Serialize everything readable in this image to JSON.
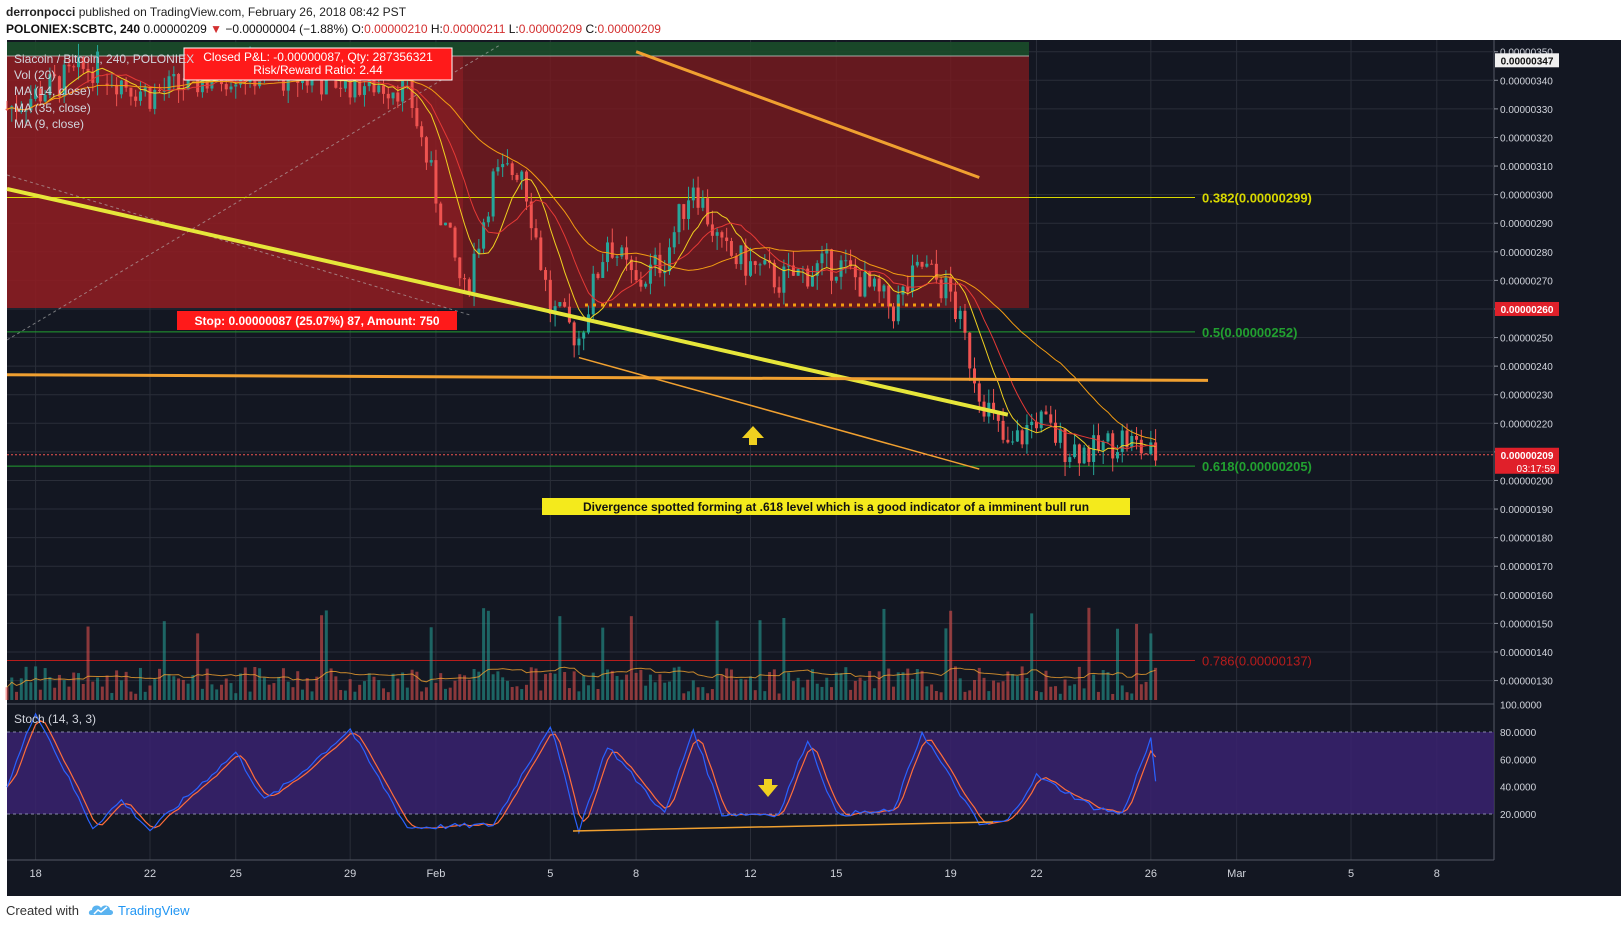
{
  "header": {
    "author": "derronpocci",
    "published_text": "published on TradingView.com, February 26, 2018 08:42 PST",
    "symbol": "POLONIEX:SCBTC, 240",
    "last": "0.00000209",
    "change": "−0.00000004 (−1.88%)",
    "o_label": "O:",
    "o": "0.00000210",
    "h_label": "H:",
    "h": "0.00000211",
    "l_label": "L:",
    "l": "0.00000209",
    "c_label": "C:",
    "c": "0.00000209"
  },
  "legend": {
    "title": "Siacoin / Bitcoin, 240, POLONIEX",
    "vol": "Vol (20)",
    "ma14": "MA (14, close)",
    "ma35": "MA (35, close)",
    "ma9": "MA (9, close)",
    "stoch": "Stoch (14, 3, 3)"
  },
  "trade": {
    "close_line1": "Closed P&L: -0.00000087, Qty: 287356321",
    "close_line2": "Risk/Reward Ratio: 2.44",
    "stop": "Stop: 0.00000087 (25.07%) 87, Amount: 750"
  },
  "fib": {
    "f0382": "0.382(0.00000299)",
    "f05": "0.5(0.00000252)",
    "f0618": "0.618(0.00000205)",
    "f0786": "0.786(0.00000137)"
  },
  "annotation": "Divergence spotted forming at .618 level which is a good indicator of a imminent bull run",
  "price_axis": {
    "ticks": [
      "0.00000350",
      "0.00000340",
      "0.00000330",
      "0.00000320",
      "0.00000310",
      "0.00000300",
      "0.00000290",
      "0.00000280",
      "0.00000270",
      "0.00000260",
      "0.00000250",
      "0.00000240",
      "0.00000230",
      "0.00000220",
      "0.00000210",
      "0.00000200",
      "0.00000190",
      "0.00000180",
      "0.00000170",
      "0.00000160",
      "0.00000150",
      "0.00000140",
      "0.00000130"
    ],
    "tag_top": "0.00000347",
    "tag_stop": "0.00000260",
    "tag_last": "0.00000209",
    "countdown": "03:17:59"
  },
  "stoch_axis": {
    "ticks": [
      "100.0000",
      "80.0000",
      "60.0000",
      "40.0000",
      "20.0000"
    ]
  },
  "time_axis": {
    "labels": [
      "18",
      "22",
      "25",
      "29",
      "Feb",
      "5",
      "8",
      "12",
      "15",
      "19",
      "22",
      "26",
      "Mar",
      "5",
      "8"
    ]
  },
  "footer": {
    "created": "Created with",
    "brand": "TradingView"
  },
  "colors": {
    "background": "#131722",
    "grid": "#2a2e39",
    "up": "#26a69a",
    "down": "#ef5350",
    "stop_zone": "#7a1a1f",
    "profit_zone": "#1b4d2a",
    "trendline_yellow": "#e6e63a",
    "trendline_orange": "#f0a030",
    "fib_yellow": "#d8d800",
    "fib_green": "#22a030",
    "fib_red": "#b71c1c",
    "stoch_band": "#3a2270",
    "stoch_k": "#2962ff",
    "stoch_d": "#ff6d3a"
  },
  "chart_data": {
    "type": "candlestick",
    "timeframe": "240",
    "x_range": [
      "2018-01-17",
      "2018-03-10"
    ],
    "y_range": [
      1.26e-06,
      3.52e-06
    ],
    "price_path": [
      {
        "date": "2018-01-17",
        "price": 3.3e-06
      },
      {
        "date": "2018-01-20",
        "price": 3.45e-06
      },
      {
        "date": "2018-01-22",
        "price": 3.35e-06
      },
      {
        "date": "2018-01-25",
        "price": 3.43e-06
      },
      {
        "date": "2018-01-28",
        "price": 3.4e-06
      },
      {
        "date": "2018-01-31",
        "price": 3.38e-06
      },
      {
        "date": "2018-02-01",
        "price": 3e-06
      },
      {
        "date": "2018-02-02",
        "price": 2.65e-06
      },
      {
        "date": "2018-02-03",
        "price": 3.05e-06
      },
      {
        "date": "2018-02-04",
        "price": 3.1e-06
      },
      {
        "date": "2018-02-05",
        "price": 2.6e-06
      },
      {
        "date": "2018-02-06",
        "price": 2.5e-06
      },
      {
        "date": "2018-02-07",
        "price": 2.85e-06
      },
      {
        "date": "2018-02-08",
        "price": 2.68e-06
      },
      {
        "date": "2018-02-09",
        "price": 2.78e-06
      },
      {
        "date": "2018-02-10",
        "price": 3.05e-06
      },
      {
        "date": "2018-02-11",
        "price": 2.8e-06
      },
      {
        "date": "2018-02-13",
        "price": 2.7e-06
      },
      {
        "date": "2018-02-15",
        "price": 2.76e-06
      },
      {
        "date": "2018-02-17",
        "price": 2.6e-06
      },
      {
        "date": "2018-02-18",
        "price": 2.75e-06
      },
      {
        "date": "2018-02-19",
        "price": 2.65e-06
      },
      {
        "date": "2018-02-20",
        "price": 2.32e-06
      },
      {
        "date": "2018-02-21",
        "price": 2.1e-06
      },
      {
        "date": "2018-02-22",
        "price": 2.22e-06
      },
      {
        "date": "2018-02-23",
        "price": 2.12e-06
      },
      {
        "date": "2018-02-24",
        "price": 2.1e-06
      },
      {
        "date": "2018-02-25",
        "price": 2.15e-06
      },
      {
        "date": "2018-02-26",
        "price": 2.09e-06
      }
    ],
    "fib_levels": [
      {
        "level": 0.382,
        "price": 2.99e-06
      },
      {
        "level": 0.5,
        "price": 2.52e-06
      },
      {
        "level": 0.618,
        "price": 2.05e-06
      },
      {
        "level": 0.786,
        "price": 1.37e-06
      }
    ],
    "trendlines": [
      {
        "color": "yellow",
        "from": [
          "2018-01-17",
          3.02e-06
        ],
        "to": [
          "2018-02-21",
          2.23e-06
        ]
      },
      {
        "color": "orange",
        "from": [
          "2018-02-08",
          3.5e-06
        ],
        "to": [
          "2018-02-20",
          3.06e-06
        ]
      },
      {
        "color": "orange",
        "from": [
          "2018-01-17",
          2.37e-06
        ],
        "to": [
          "2018-02-28",
          2.35e-06
        ]
      },
      {
        "color": "orange",
        "from": [
          "2018-02-06",
          2.43e-06
        ],
        "to": [
          "2018-02-20",
          2.04e-06
        ]
      }
    ],
    "stoch_k_path": [
      {
        "date": "2018-01-17",
        "value": 40
      },
      {
        "date": "2018-01-18",
        "value": 95
      },
      {
        "date": "2018-01-20",
        "value": 10
      },
      {
        "date": "2018-01-21",
        "value": 30
      },
      {
        "date": "2018-01-22",
        "value": 8
      },
      {
        "date": "2018-01-25",
        "value": 65
      },
      {
        "date": "2018-01-26",
        "value": 30
      },
      {
        "date": "2018-01-27",
        "value": 45
      },
      {
        "date": "2018-01-29",
        "value": 82
      },
      {
        "date": "2018-01-31",
        "value": 10
      },
      {
        "date": "2018-02-03",
        "value": 12
      },
      {
        "date": "2018-02-05",
        "value": 85
      },
      {
        "date": "2018-02-06",
        "value": 8
      },
      {
        "date": "2018-02-07",
        "value": 70
      },
      {
        "date": "2018-02-09",
        "value": 20
      },
      {
        "date": "2018-02-10",
        "value": 82
      },
      {
        "date": "2018-02-11",
        "value": 20
      },
      {
        "date": "2018-02-13",
        "value": 20
      },
      {
        "date": "2018-02-14",
        "value": 75
      },
      {
        "date": "2018-02-15",
        "value": 20
      },
      {
        "date": "2018-02-17",
        "value": 22
      },
      {
        "date": "2018-02-18",
        "value": 80
      },
      {
        "date": "2018-02-20",
        "value": 12
      },
      {
        "date": "2018-02-21",
        "value": 15
      },
      {
        "date": "2018-02-22",
        "value": 48
      },
      {
        "date": "2018-02-24",
        "value": 25
      },
      {
        "date": "2018-02-25",
        "value": 20
      },
      {
        "date": "2018-02-26",
        "value": 75
      },
      {
        "date": "2018-02-26",
        "value": 42
      }
    ]
  }
}
